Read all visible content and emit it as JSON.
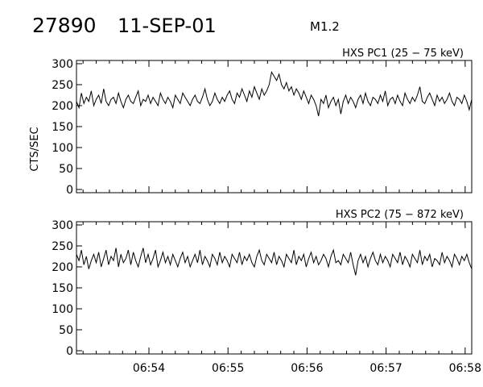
{
  "header": {
    "event_id": "27890",
    "date": "11-SEP-01",
    "flare_class": "M1.2"
  },
  "chart_data": [
    {
      "type": "line",
      "title": "HXS PC1 (25 − 75 keV)",
      "xlabel": "",
      "ylabel": "CTS/SEC",
      "ylim": [
        0,
        300
      ],
      "yticks": [
        "0",
        "50",
        "100",
        "150",
        "200",
        "250",
        "300"
      ],
      "xlim": [
        "06:53:05",
        "06:58:05"
      ],
      "xticks": [],
      "grid": false,
      "series": [
        {
          "values": [
            210,
            195,
            230,
            205,
            220,
            210,
            235,
            200,
            215,
            225,
            205,
            240,
            210,
            200,
            215,
            220,
            205,
            230,
            210,
            195,
            215,
            225,
            210,
            205,
            220,
            235,
            200,
            215,
            210,
            225,
            205,
            220,
            210,
            200,
            230,
            215,
            205,
            220,
            210,
            195,
            225,
            215,
            205,
            230,
            220,
            210,
            200,
            215,
            225,
            210,
            205,
            220,
            240,
            215,
            200,
            210,
            230,
            215,
            205,
            220,
            210,
            225,
            235,
            215,
            205,
            230,
            220,
            240,
            225,
            210,
            235,
            220,
            245,
            230,
            215,
            240,
            225,
            235,
            250,
            280,
            270,
            260,
            275,
            250,
            240,
            255,
            235,
            245,
            225,
            240,
            230,
            215,
            235,
            220,
            205,
            225,
            215,
            200,
            175,
            215,
            205,
            225,
            195,
            210,
            220,
            200,
            215,
            180,
            210,
            225,
            205,
            220,
            210,
            195,
            215,
            225,
            205,
            230,
            210,
            200,
            220,
            215,
            205,
            225,
            210,
            235,
            200,
            215,
            220,
            205,
            225,
            210,
            200,
            230,
            215,
            205,
            220,
            210,
            225,
            245,
            210,
            205,
            220,
            230,
            215,
            200,
            225,
            210,
            220,
            205,
            215,
            230,
            210,
            200,
            220,
            215,
            205,
            225,
            210,
            190,
            215
          ]
        }
      ]
    },
    {
      "type": "line",
      "title": "HXS PC2 (75 − 872 keV)",
      "xlabel": "",
      "ylabel": "",
      "ylim": [
        0,
        300
      ],
      "yticks": [
        "0",
        "50",
        "100",
        "150",
        "200",
        "250",
        "300"
      ],
      "xlim": [
        "06:53:05",
        "06:58:05"
      ],
      "xticks": [
        "06:54",
        "06:55",
        "06:56",
        "06:57",
        "06:58"
      ],
      "grid": false,
      "series": [
        {
          "values": [
            230,
            215,
            240,
            205,
            225,
            195,
            215,
            230,
            210,
            235,
            200,
            220,
            240,
            205,
            225,
            215,
            245,
            200,
            230,
            210,
            220,
            240,
            205,
            235,
            215,
            200,
            225,
            245,
            210,
            230,
            205,
            220,
            240,
            200,
            215,
            235,
            210,
            225,
            205,
            230,
            215,
            200,
            220,
            235,
            210,
            225,
            200,
            215,
            230,
            210,
            240,
            205,
            225,
            215,
            200,
            230,
            220,
            205,
            235,
            210,
            225,
            215,
            200,
            230,
            220,
            210,
            235,
            205,
            225,
            215,
            230,
            210,
            200,
            225,
            240,
            215,
            205,
            230,
            220,
            210,
            235,
            205,
            225,
            215,
            200,
            230,
            220,
            210,
            240,
            205,
            225,
            215,
            230,
            200,
            220,
            235,
            210,
            225,
            205,
            215,
            230,
            220,
            200,
            225,
            240,
            210,
            215,
            205,
            230,
            220,
            210,
            235,
            205,
            180,
            215,
            230,
            210,
            225,
            200,
            220,
            235,
            215,
            205,
            230,
            210,
            225,
            215,
            200,
            230,
            220,
            210,
            235,
            205,
            225,
            215,
            200,
            230,
            220,
            210,
            240,
            205,
            225,
            215,
            230,
            200,
            220,
            215,
            205,
            235,
            210,
            225,
            215,
            200,
            230,
            220,
            205,
            225,
            215,
            230,
            210,
            195
          ]
        }
      ]
    }
  ]
}
